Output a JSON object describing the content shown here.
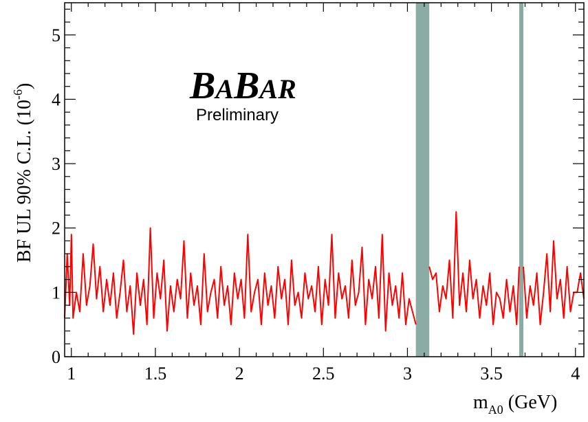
{
  "chart_data": {
    "type": "line",
    "ylabel": "BF UL  90% C.L. (10",
    "ylabel_exp": "-6",
    "ylabel_close": ")",
    "xlabel_main": "m",
    "xlabel_sub": "A0",
    "xlabel_unit": " (GeV)",
    "xlim": [
      0.96,
      4.05
    ],
    "ylim": [
      0,
      5.5
    ],
    "x_ticks": [
      1,
      1.5,
      2,
      2.5,
      3,
      3.5,
      4
    ],
    "x_tick_labels": [
      "1",
      "1.5",
      "2",
      "2.5",
      "3",
      "3.5",
      "4"
    ],
    "y_ticks": [
      0,
      1,
      2,
      3,
      4,
      5
    ],
    "y_tick_labels": [
      "0",
      "1",
      "2",
      "3",
      "4",
      "5"
    ],
    "line_color": "#ff0000",
    "band_color": "#8aaca4",
    "excluded_bands": [
      [
        3.05,
        3.13
      ],
      [
        3.665,
        3.69
      ]
    ],
    "annotation": {
      "brand": [
        "B",
        "A",
        "B",
        "A",
        "R"
      ],
      "subtitle": "Preliminary"
    },
    "series": [
      {
        "x": [
          0.96,
          0.975,
          0.99,
          1.0,
          1.01,
          1.03,
          1.05,
          1.07,
          1.09,
          1.11,
          1.13,
          1.15,
          1.17,
          1.19,
          1.21,
          1.23,
          1.25,
          1.27,
          1.29,
          1.31,
          1.33,
          1.35,
          1.37,
          1.39,
          1.41,
          1.43,
          1.45,
          1.47,
          1.49,
          1.51,
          1.53,
          1.55,
          1.57,
          1.59,
          1.61,
          1.63,
          1.65,
          1.67,
          1.69,
          1.71,
          1.73,
          1.75,
          1.77,
          1.79,
          1.81,
          1.83,
          1.85,
          1.87,
          1.89,
          1.91,
          1.93,
          1.95,
          1.97,
          1.99,
          2.01,
          2.03,
          2.05,
          2.07,
          2.09,
          2.11,
          2.13,
          2.15,
          2.17,
          2.19,
          2.21,
          2.23,
          2.25,
          2.27,
          2.29,
          2.31,
          2.33,
          2.35,
          2.37,
          2.39,
          2.41,
          2.43,
          2.45,
          2.47,
          2.49,
          2.51,
          2.53,
          2.55,
          2.57,
          2.59,
          2.61,
          2.63,
          2.65,
          2.67,
          2.69,
          2.71,
          2.73,
          2.75,
          2.77,
          2.79,
          2.81,
          2.83,
          2.85,
          2.87,
          2.89,
          2.91,
          2.93,
          2.95,
          2.97,
          2.99,
          3.01,
          3.03,
          3.05
        ],
        "y": [
          0.6,
          1.6,
          0.8,
          1.9,
          0.6,
          1.0,
          0.7,
          1.6,
          0.8,
          1.1,
          1.75,
          0.9,
          1.4,
          0.7,
          1.2,
          0.8,
          1.3,
          0.6,
          1.0,
          1.5,
          0.7,
          1.1,
          0.35,
          1.3,
          0.8,
          1.2,
          0.5,
          2.0,
          0.6,
          1.3,
          0.9,
          1.5,
          0.4,
          1.1,
          0.7,
          1.2,
          0.9,
          1.8,
          0.6,
          1.3,
          0.8,
          1.1,
          0.5,
          1.6,
          0.7,
          1.0,
          1.2,
          0.6,
          1.4,
          0.8,
          1.1,
          0.5,
          1.3,
          0.9,
          1.2,
          0.6,
          1.9,
          0.7,
          1.0,
          1.2,
          0.5,
          1.3,
          0.8,
          1.1,
          0.6,
          1.4,
          0.9,
          1.2,
          0.5,
          1.5,
          0.8,
          1.0,
          0.6,
          1.3,
          0.9,
          1.1,
          0.7,
          1.4,
          0.5,
          1.2,
          0.8,
          1.9,
          0.6,
          1.3,
          0.9,
          1.1,
          0.6,
          1.5,
          0.8,
          1.0,
          1.7,
          0.5,
          1.2,
          0.9,
          1.4,
          0.6,
          1.9,
          0.4,
          1.3,
          0.8,
          1.1,
          0.6,
          1.3,
          0.5,
          0.9,
          0.7,
          0.5
        ]
      },
      {
        "x": [
          3.13,
          3.15,
          3.17,
          3.19,
          3.21,
          3.23,
          3.25,
          3.27,
          3.29,
          3.31,
          3.33,
          3.35,
          3.37,
          3.39,
          3.41,
          3.43,
          3.45,
          3.47,
          3.49,
          3.51,
          3.53,
          3.55,
          3.57,
          3.59,
          3.61,
          3.63,
          3.65,
          3.665
        ],
        "y": [
          1.4,
          1.2,
          1.3,
          0.7,
          1.1,
          0.9,
          1.5,
          0.6,
          2.25,
          0.8,
          1.3,
          0.7,
          1.5,
          0.9,
          1.2,
          0.6,
          1.1,
          0.8,
          1.3,
          0.5,
          1.0,
          0.9,
          0.6,
          1.2,
          0.7,
          1.1,
          0.5,
          1.4
        ]
      },
      {
        "x": [
          3.69,
          3.71,
          3.73,
          3.75,
          3.77,
          3.79,
          3.81,
          3.83,
          3.85,
          3.87,
          3.89,
          3.91,
          3.93,
          3.95,
          3.97,
          3.99,
          4.01,
          4.03,
          4.05
        ],
        "y": [
          1.4,
          0.6,
          1.1,
          0.8,
          1.3,
          0.5,
          1.0,
          1.6,
          0.7,
          1.8,
          0.9,
          1.2,
          0.6,
          1.4,
          0.7,
          1.0,
          1.0,
          1.3,
          0.9
        ]
      }
    ]
  }
}
